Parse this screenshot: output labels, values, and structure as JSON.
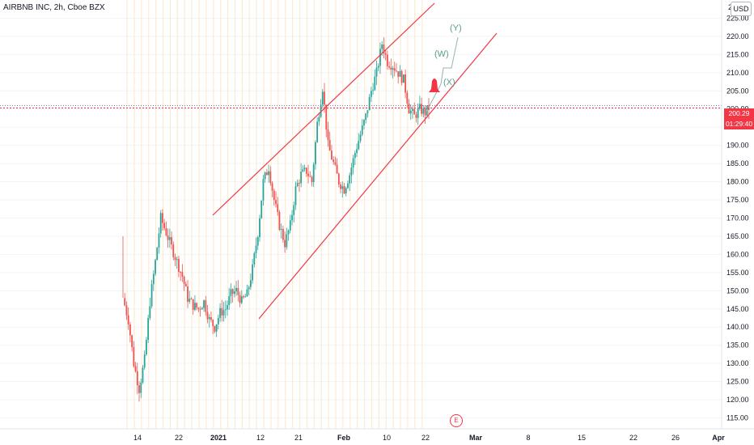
{
  "header": {
    "title": "AIRBNB INC, 2h, Cboe BZX"
  },
  "price_scale": {
    "currency_button": "USD",
    "top_clipped_label": "2",
    "current_price": "200.29",
    "countdown": "01:29:40"
  },
  "event_marker": {
    "label": "E"
  },
  "colors": {
    "up": "#26a69a",
    "down": "#ef5350",
    "channel": "#f23645",
    "wave": "#5b9e8c",
    "session_bg": "#fde7c2",
    "grid": "#f0f3fa"
  },
  "chart_data": {
    "type": "candlestick",
    "ylim": [
      112,
      230
    ],
    "x_tick_labels": [
      "14",
      "22",
      "2021",
      "12",
      "21",
      "Feb",
      "10",
      "22",
      "Mar",
      "8",
      "15",
      "22",
      "26",
      "Apr"
    ],
    "y_tick_labels": [
      "225.00",
      "220.00",
      "215.00",
      "210.00",
      "205.00",
      "200.00",
      "195.00",
      "190.00",
      "185.00",
      "180.00",
      "175.00",
      "170.00",
      "165.00",
      "160.00",
      "155.00",
      "150.00",
      "145.00",
      "140.00",
      "135.00",
      "130.00",
      "125.00",
      "120.00",
      "115.00"
    ],
    "last_price": 200.29,
    "anchors": [
      [
        0,
        148
      ],
      [
        3,
        142
      ],
      [
        6,
        130
      ],
      [
        9,
        123
      ],
      [
        12,
        131
      ],
      [
        15,
        147
      ],
      [
        18,
        158
      ],
      [
        21,
        170
      ],
      [
        24,
        166
      ],
      [
        27,
        162
      ],
      [
        30,
        158
      ],
      [
        33,
        154
      ],
      [
        36,
        148
      ],
      [
        39,
        146
      ],
      [
        42,
        145
      ],
      [
        45,
        147
      ],
      [
        48,
        142
      ],
      [
        51,
        140
      ],
      [
        54,
        144
      ],
      [
        57,
        145
      ],
      [
        60,
        149
      ],
      [
        63,
        150
      ],
      [
        66,
        147
      ],
      [
        69,
        149
      ],
      [
        72,
        156
      ],
      [
        75,
        166
      ],
      [
        78,
        180
      ],
      [
        81,
        184
      ],
      [
        84,
        175
      ],
      [
        87,
        168
      ],
      [
        90,
        163
      ],
      [
        93,
        168
      ],
      [
        96,
        178
      ],
      [
        99,
        182
      ],
      [
        102,
        183
      ],
      [
        105,
        180
      ],
      [
        108,
        196
      ],
      [
        111,
        206
      ],
      [
        114,
        190
      ],
      [
        117,
        185
      ],
      [
        120,
        180
      ],
      [
        123,
        178
      ],
      [
        126,
        182
      ],
      [
        129,
        188
      ],
      [
        132,
        193
      ],
      [
        135,
        198
      ],
      [
        138,
        205
      ],
      [
        141,
        210
      ],
      [
        144,
        218
      ],
      [
        147,
        213
      ],
      [
        150,
        212
      ],
      [
        153,
        210
      ],
      [
        156,
        208
      ],
      [
        159,
        200
      ],
      [
        162,
        198
      ],
      [
        165,
        200
      ],
      [
        168,
        199
      ],
      [
        170,
        200.29
      ]
    ],
    "channel_upper": {
      "from": [
        "2020-12-29",
        172
      ],
      "to": [
        "2021-02-25",
        230
      ]
    },
    "channel_lower": {
      "from": [
        "2021-01-10",
        143
      ],
      "to": [
        "2021-03-04",
        222
      ]
    },
    "wave_labels": [
      {
        "text": "(W)",
        "price": 214
      },
      {
        "text": "(X)",
        "price": 208
      },
      {
        "text": "(Y)",
        "price": 223
      }
    ]
  }
}
